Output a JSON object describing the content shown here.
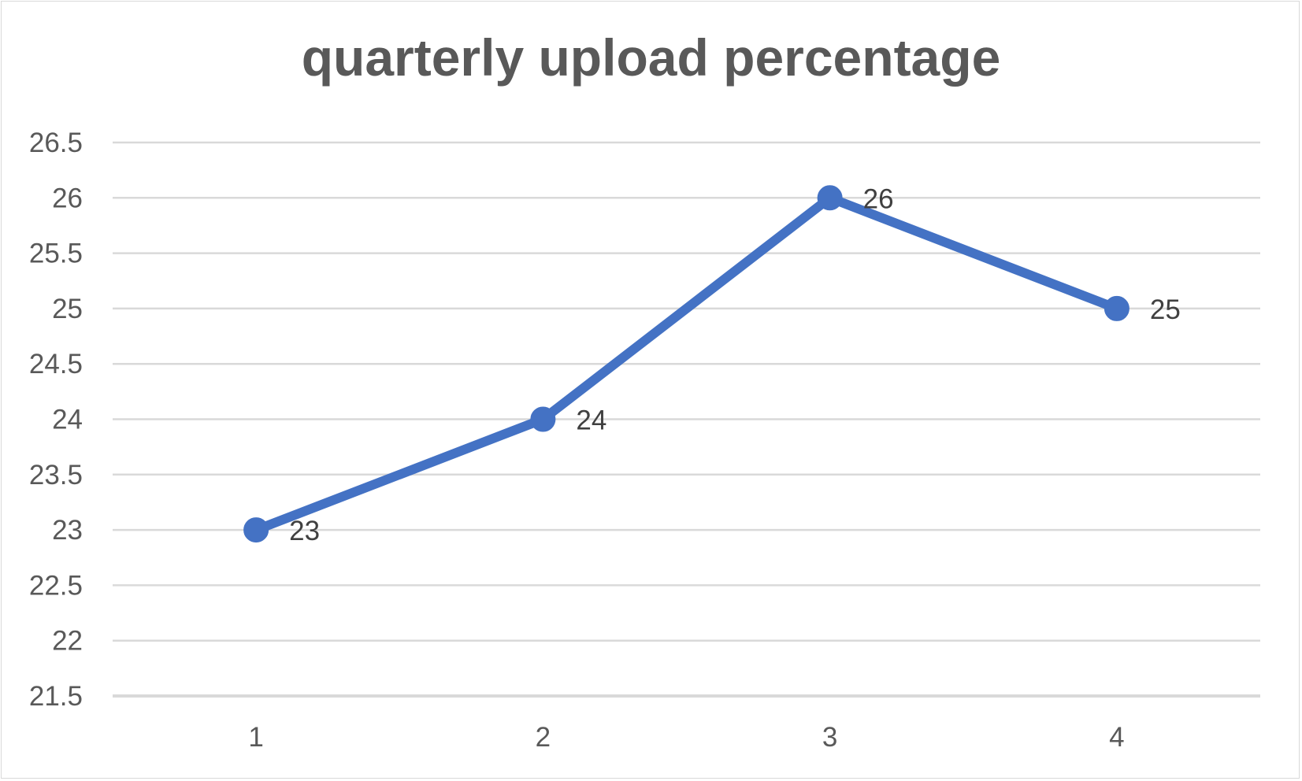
{
  "chart_data": {
    "type": "line",
    "title": "quarterly upload percentage",
    "xlabel": "",
    "ylabel": "",
    "categories": [
      "1",
      "2",
      "3",
      "4"
    ],
    "series": [
      {
        "values": [
          23,
          24,
          26,
          25
        ],
        "color": "#4472c4"
      }
    ],
    "ylim": [
      21.5,
      26.5
    ],
    "ytick_step": 0.5,
    "yticks": [
      "21.5",
      "22",
      "22.5",
      "23",
      "23.5",
      "24",
      "24.5",
      "25",
      "25.5",
      "26",
      "26.5"
    ],
    "data_labels": [
      "23",
      "24",
      "26",
      "25"
    ],
    "grid": true,
    "legend": "none"
  },
  "colors": {
    "series": "#4472c4",
    "gridline": "#d9d9d9",
    "axis_text": "#595959",
    "title": "#595959"
  }
}
